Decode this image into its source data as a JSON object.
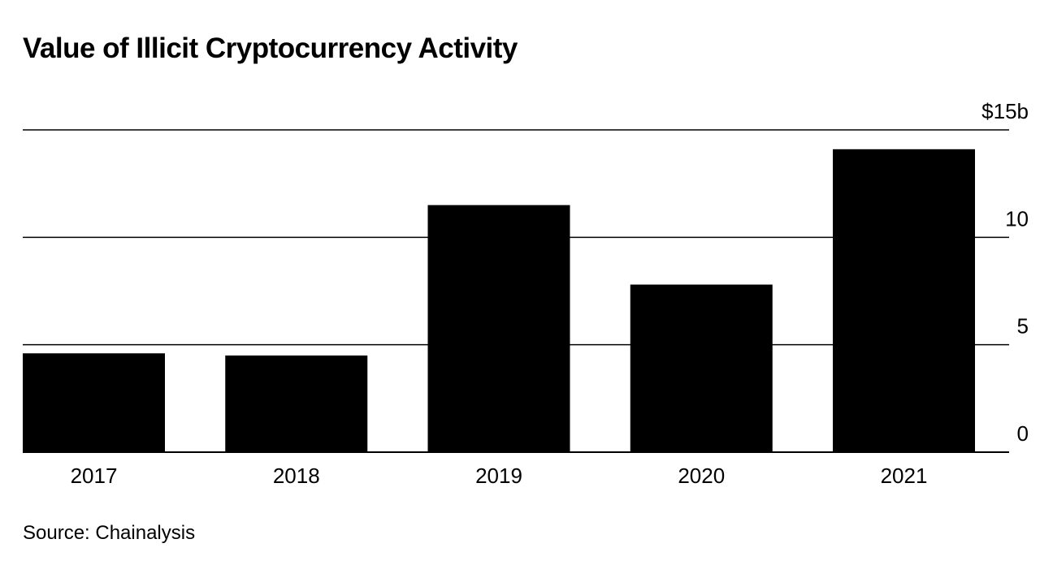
{
  "title": "Value of Illicit Cryptocurrency Activity",
  "source": "Source: Chainalysis",
  "chart_data": {
    "type": "bar",
    "title": "Value of Illicit Cryptocurrency Activity",
    "categories": [
      "2017",
      "2018",
      "2019",
      "2020",
      "2021"
    ],
    "values": [
      4.6,
      4.5,
      11.5,
      7.8,
      14.1
    ],
    "ylim": [
      0,
      15
    ],
    "yticks": [
      0,
      5,
      10,
      15
    ],
    "ytick_labels": [
      "0",
      "5",
      "10",
      "$15b"
    ],
    "xlabel": "",
    "ylabel": "",
    "grid": true,
    "y_axis_position": "right",
    "bar_color": "#000000",
    "source": "Source: Chainalysis"
  }
}
